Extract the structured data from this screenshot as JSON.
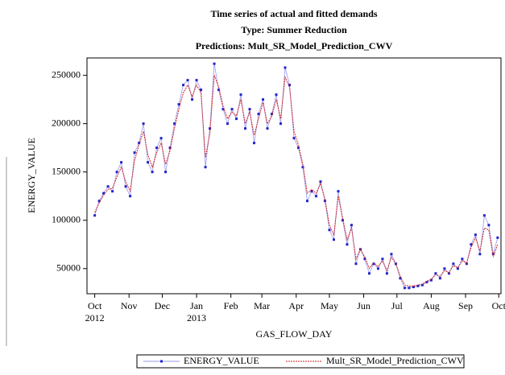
{
  "chart_data": {
    "type": "line",
    "title": "Time series of actual and fitted demands",
    "subtitle": "Type: Summer Reduction",
    "subtitle2": "Predictions: Mult_SR_Model_Prediction_CWV",
    "x_label": "GAS_FLOW_DAY",
    "y_label": "ENERGY_VALUE",
    "xlim": [
      -7,
      367
    ],
    "ylim": [
      24000,
      268000
    ],
    "xticks": [
      {
        "value": 0,
        "label": "Oct"
      },
      {
        "value": 31,
        "label": "Nov"
      },
      {
        "value": 61,
        "label": "Dec"
      },
      {
        "value": 92,
        "label": "Jan"
      },
      {
        "value": 123,
        "label": "Feb"
      },
      {
        "value": 151,
        "label": "Mar"
      },
      {
        "value": 182,
        "label": "Apr"
      },
      {
        "value": 212,
        "label": "May"
      },
      {
        "value": 243,
        "label": "Jun"
      },
      {
        "value": 273,
        "label": "Jul"
      },
      {
        "value": 304,
        "label": "Aug"
      },
      {
        "value": 335,
        "label": "Sep"
      },
      {
        "value": 365,
        "label": "Oct"
      }
    ],
    "xtick_years": [
      {
        "value": 0,
        "label": "2012"
      },
      {
        "value": 92,
        "label": "2013"
      }
    ],
    "yticks": [
      50000,
      100000,
      150000,
      200000,
      250000
    ],
    "x": [
      0,
      4,
      8,
      12,
      16,
      20,
      24,
      28,
      32,
      36,
      40,
      44,
      48,
      52,
      56,
      60,
      64,
      68,
      72,
      76,
      80,
      84,
      88,
      92,
      96,
      100,
      104,
      108,
      112,
      116,
      120,
      124,
      128,
      132,
      136,
      140,
      144,
      148,
      152,
      156,
      160,
      164,
      168,
      172,
      176,
      180,
      184,
      188,
      192,
      196,
      200,
      204,
      208,
      212,
      216,
      220,
      224,
      228,
      232,
      236,
      240,
      244,
      248,
      252,
      256,
      260,
      264,
      268,
      272,
      276,
      280,
      284,
      288,
      292,
      296,
      300,
      304,
      308,
      312,
      316,
      320,
      324,
      328,
      332,
      336,
      340,
      344,
      348,
      352,
      356,
      360,
      364
    ],
    "series": [
      {
        "name": "ENERGY_VALUE",
        "color": "#2222cc",
        "values": [
          105000,
          120000,
          128000,
          135000,
          130000,
          150000,
          160000,
          135000,
          125000,
          170000,
          180000,
          200000,
          160000,
          150000,
          175000,
          185000,
          150000,
          175000,
          200000,
          220000,
          240000,
          245000,
          225000,
          245000,
          235000,
          155000,
          195000,
          262000,
          235000,
          215000,
          200000,
          215000,
          205000,
          230000,
          195000,
          215000,
          180000,
          210000,
          225000,
          195000,
          210000,
          230000,
          200000,
          258000,
          240000,
          185000,
          175000,
          155000,
          120000,
          130000,
          125000,
          140000,
          120000,
          90000,
          80000,
          130000,
          100000,
          75000,
          95000,
          55000,
          70000,
          60000,
          45000,
          55000,
          50000,
          60000,
          45000,
          65000,
          55000,
          40000,
          30000,
          30000,
          31000,
          32000,
          33000,
          36000,
          38000,
          45000,
          40000,
          50000,
          45000,
          55000,
          50000,
          60000,
          55000,
          75000,
          85000,
          65000,
          105000,
          95000,
          65000,
          82000
        ]
      },
      {
        "name": "Mult_SR_Model_Prediction_CWV",
        "color": "#cc2222",
        "values": [
          108000,
          118000,
          126000,
          132000,
          133000,
          145000,
          155000,
          140000,
          130000,
          162000,
          178000,
          192000,
          168000,
          155000,
          170000,
          180000,
          158000,
          172000,
          195000,
          215000,
          232000,
          240000,
          228000,
          240000,
          232000,
          165000,
          190000,
          250000,
          238000,
          218000,
          205000,
          212000,
          208000,
          225000,
          200000,
          212000,
          188000,
          205000,
          222000,
          200000,
          208000,
          225000,
          205000,
          248000,
          238000,
          192000,
          178000,
          158000,
          128000,
          132000,
          128000,
          138000,
          122000,
          95000,
          85000,
          125000,
          102000,
          80000,
          92000,
          60000,
          70000,
          62000,
          50000,
          56000,
          52000,
          58000,
          48000,
          62000,
          55000,
          42000,
          33000,
          32000,
          32000,
          33000,
          34000,
          37000,
          39000,
          44000,
          42000,
          48000,
          46000,
          53000,
          51000,
          58000,
          56000,
          72000,
          82000,
          68000,
          92000,
          90000,
          62000,
          75000
        ]
      }
    ]
  }
}
